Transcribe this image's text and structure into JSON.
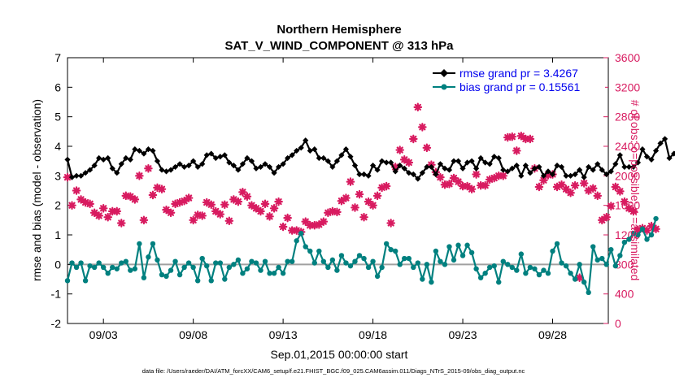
{
  "chart_data": {
    "type": "line",
    "title": "Northern Hemisphere",
    "subtitle": "SAT_V_WIND_COMPONENT @ 313 hPa",
    "xlabel": "Sep.01,2015 00:00:00 start",
    "ylabel_left": "rmse and bias (model - observation)",
    "ylabel_right": "# of obs: o=possible; ∗=assimilated",
    "footnote": "data file: /Users/raeder/DAI/ATM_forcXX/CAM6_setup/f.e21.FHIST_BGC.f09_025.CAM6assim.011/Diags_NTrS_2015-09/obs_diag_output.nc",
    "xlim": [
      1,
      31.1
    ],
    "xticks": [
      3,
      8,
      13,
      18,
      23,
      28
    ],
    "xtick_labels": [
      "09/03",
      "09/08",
      "09/13",
      "09/18",
      "09/23",
      "09/28"
    ],
    "ylim_left": [
      -2,
      7
    ],
    "yticks_left": [
      "-2",
      "-1",
      "0",
      "1",
      "2",
      "3",
      "4",
      "5",
      "6",
      "7"
    ],
    "ylim_right": [
      0,
      3600
    ],
    "yticks_right": [
      "0",
      "400",
      "800",
      "1200",
      "1600",
      "2000",
      "2400",
      "2800",
      "3200",
      "3600"
    ],
    "zero_line": 0,
    "series": [
      {
        "name": "rmse",
        "legend": "rmse grand pr = 3.4267",
        "color": "#000000",
        "marker": "diamond",
        "t0": 1.0,
        "dt": 0.25,
        "values": [
          3.55,
          2.95,
          3.0,
          3.0,
          3.1,
          3.2,
          3.35,
          3.6,
          3.55,
          3.6,
          3.25,
          3.1,
          3.4,
          3.6,
          3.55,
          3.9,
          3.85,
          3.75,
          3.9,
          3.85,
          3.5,
          3.2,
          3.15,
          3.2,
          3.3,
          3.4,
          3.3,
          3.35,
          3.5,
          3.3,
          3.4,
          3.7,
          3.75,
          3.6,
          3.65,
          3.7,
          3.45,
          3.35,
          3.2,
          3.4,
          3.6,
          3.5,
          3.25,
          3.3,
          3.4,
          3.3,
          3.1,
          3.3,
          3.4,
          3.6,
          3.7,
          3.85,
          3.95,
          4.2,
          3.85,
          3.9,
          3.6,
          3.6,
          3.5,
          3.3,
          3.5,
          3.7,
          3.9,
          3.65,
          3.35,
          3.05,
          3.05,
          3.0,
          3.35,
          3.2,
          3.5,
          3.45,
          3.45,
          3.15,
          3.35,
          3.25,
          3.1,
          3.05,
          2.9,
          3.1,
          3.3,
          3.3,
          3.05,
          3.4,
          3.25,
          3.2,
          3.5,
          3.5,
          3.25,
          3.45,
          3.5,
          3.25,
          3.6,
          3.45,
          3.4,
          3.65,
          3.6,
          3.2,
          3.15,
          3.25,
          3.35,
          3.0,
          3.35,
          3.1,
          3.25,
          3.3,
          3.0,
          3.15,
          3.05,
          3.35,
          3.3,
          3.0,
          3.0,
          3.05,
          3.2,
          2.95,
          3.3,
          3.2,
          3.4,
          3.2,
          3.05,
          3.15,
          3.4,
          3.7,
          3.3,
          3.3,
          3.3,
          3.45,
          3.9,
          3.65,
          3.55,
          3.85,
          4.1,
          4.25,
          3.6,
          3.75,
          3.95,
          4.35
        ]
      },
      {
        "name": "bias",
        "legend": "bias grand pr = 0.15561",
        "color": "#00807f",
        "marker": "circle",
        "t0": 1.0,
        "dt": 0.25,
        "values": [
          -0.55,
          0.05,
          -0.1,
          0.05,
          -0.55,
          -0.05,
          -0.1,
          0.05,
          -0.1,
          -0.3,
          -0.1,
          -0.15,
          0.05,
          0.1,
          -0.2,
          -0.15,
          0.7,
          -0.45,
          0.25,
          0.7,
          0.15,
          -0.35,
          -0.4,
          -0.2,
          0.1,
          -0.35,
          -0.1,
          0.05,
          -0.1,
          -0.55,
          0.2,
          -0.05,
          -0.55,
          0.05,
          0.05,
          -0.5,
          -0.1,
          0.0,
          0.15,
          -0.3,
          -0.15,
          0.1,
          0.05,
          -0.2,
          0.1,
          -0.3,
          -0.3,
          -0.1,
          -0.3,
          0.1,
          0.1,
          0.8,
          1.05,
          0.6,
          0.45,
          0.05,
          0.45,
          0.1,
          -0.1,
          0.15,
          -0.2,
          0.3,
          0.05,
          -0.05,
          0.1,
          0.3,
          0.2,
          -0.1,
          0.1,
          -0.4,
          -0.1,
          0.7,
          0.5,
          0.45,
          0.0,
          0.2,
          0.2,
          -0.1,
          0.05,
          -0.5,
          0.0,
          -0.6,
          0.45,
          0.1,
          0.0,
          0.6,
          0.15,
          0.65,
          0.3,
          0.65,
          0.4,
          -0.15,
          -0.45,
          -0.3,
          -0.1,
          -0.05,
          -0.6,
          0.1,
          0.0,
          -0.1,
          -0.2,
          0.35,
          -0.3,
          -0.1,
          -0.15,
          -0.35,
          -0.2,
          -0.3,
          0.45,
          0.7,
          0.05,
          -0.05,
          -0.3,
          -0.5,
          0.0,
          -0.6,
          -0.95,
          0.6,
          0.15,
          0.2,
          0.0,
          0.5,
          -0.05,
          0.3,
          0.75,
          0.85,
          1.05,
          1.0,
          1.2,
          0.85,
          1.0,
          1.55
        ]
      },
      {
        "name": "obs_assimilated",
        "color": "#d81b60",
        "marker": "asterisk",
        "axis": "right",
        "t0": 1.0,
        "dt": 0.25,
        "values": [
          1980,
          1600,
          1800,
          1680,
          1640,
          1620,
          1500,
          1460,
          1560,
          1440,
          1520,
          1520,
          1360,
          1730,
          1720,
          1680,
          2000,
          1400,
          2100,
          1740,
          1840,
          1820,
          1540,
          1500,
          1620,
          1640,
          1660,
          1700,
          1400,
          1470,
          1460,
          1640,
          1610,
          1520,
          1480,
          1610,
          1390,
          1680,
          1650,
          1780,
          1720,
          1600,
          1560,
          1520,
          1620,
          1450,
          1560,
          1650,
          1310,
          1430,
          1260,
          1260,
          1240,
          1380,
          1330,
          1330,
          1340,
          1380,
          1500,
          1520,
          1510,
          1660,
          1700,
          1920,
          1570,
          1750,
          1440,
          1650,
          1600,
          1730,
          1840,
          1860,
          1360,
          2120,
          2350,
          2220,
          2180,
          2500,
          2930,
          2660,
          2380,
          2150,
          2050,
          1980,
          1880,
          1890,
          1970,
          1920,
          1860,
          1860,
          1820,
          2020,
          1870,
          1870,
          1950,
          1970,
          2000,
          2000,
          2520,
          2530,
          2340,
          2540,
          2500,
          2500,
          2100,
          1850,
          1940,
          2010,
          2020,
          1850,
          1880,
          1820,
          1770,
          1870,
          620,
          1900,
          1800,
          1830,
          1730,
          1400,
          1440,
          1590,
          1850,
          1790,
          1650,
          1560,
          1520,
          1270,
          1290,
          1260,
          1320,
          1280
        ]
      }
    ],
    "line_color_zero": "#a0a0a0"
  }
}
